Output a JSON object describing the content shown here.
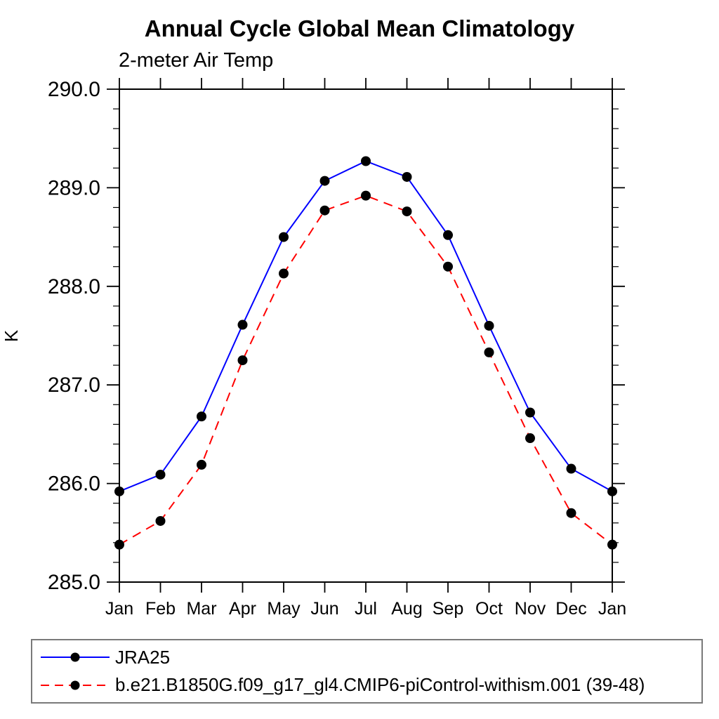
{
  "header": {
    "title": "Annual Cycle Global Mean Climatology",
    "subtitle": "2-meter Air Temp"
  },
  "chart_data": {
    "type": "line",
    "title": "Annual Cycle Global Mean Climatology",
    "subtitle": "2-meter Air Temp",
    "xlabel": "",
    "ylabel": "K",
    "categories": [
      "Jan",
      "Feb",
      "Mar",
      "Apr",
      "May",
      "Jun",
      "Jul",
      "Aug",
      "Sep",
      "Oct",
      "Nov",
      "Dec",
      "Jan"
    ],
    "series": [
      {
        "name": "JRA25",
        "color": "#0000ff",
        "line_style": "solid",
        "marker": "filled-circle",
        "marker_color": "#000000",
        "values": [
          285.92,
          286.09,
          286.68,
          287.61,
          288.5,
          289.07,
          289.27,
          289.11,
          288.52,
          287.6,
          286.72,
          286.15,
          285.92
        ]
      },
      {
        "name": "b.e21.B1850G.f09_g17_gl4.CMIP6-piControl-withism.001 (39-48)",
        "color": "#ff0000",
        "line_style": "dashed",
        "marker": "filled-circle",
        "marker_color": "#000000",
        "values": [
          285.38,
          285.62,
          286.19,
          287.25,
          288.13,
          288.77,
          288.92,
          288.76,
          288.2,
          287.33,
          286.46,
          285.7,
          285.38
        ]
      }
    ],
    "ylim": [
      285.0,
      290.0
    ],
    "y_major_ticks": [
      "285.0",
      "286.0",
      "287.0",
      "288.0",
      "289.0",
      "290.0"
    ],
    "y_minor_step": 0.2,
    "grid": false,
    "axis_color": "#000000",
    "legend_position": "bottom-left-box"
  }
}
